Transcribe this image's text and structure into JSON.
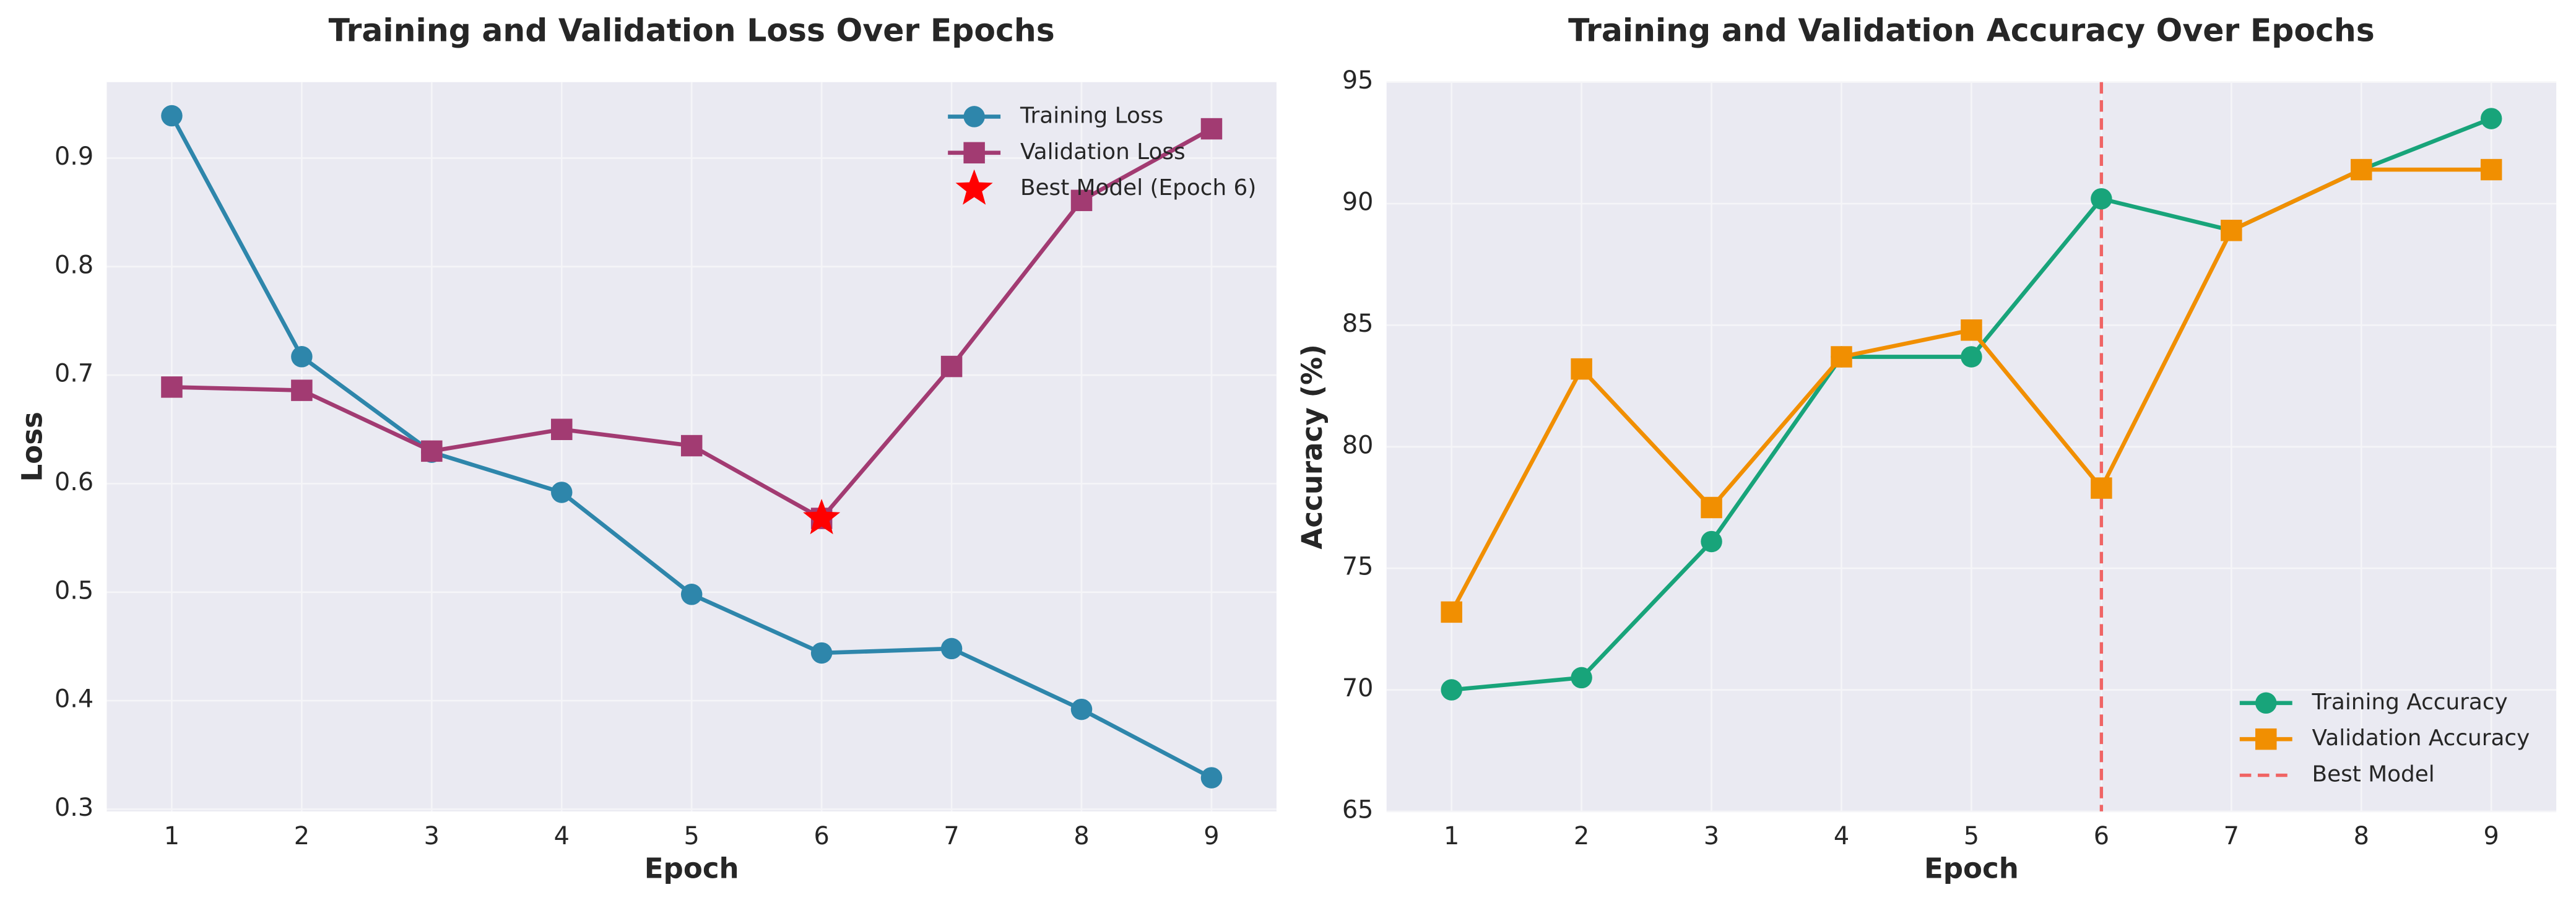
{
  "chart_data": [
    {
      "type": "line",
      "title": "Training and Validation Loss Over Epochs",
      "xlabel": "Epoch",
      "ylabel": "Loss",
      "x": [
        1,
        2,
        3,
        4,
        5,
        6,
        7,
        8,
        9
      ],
      "series": [
        {
          "name": "Training Loss",
          "color": "#2e86ab",
          "marker": "circle",
          "values": [
            0.939,
            0.717,
            0.629,
            0.592,
            0.498,
            0.444,
            0.448,
            0.392,
            0.329
          ]
        },
        {
          "name": "Validation Loss",
          "color": "#a23b72",
          "marker": "square",
          "values": [
            0.689,
            0.686,
            0.63,
            0.65,
            0.635,
            0.568,
            0.708,
            0.861,
            0.927
          ]
        }
      ],
      "markers": [
        {
          "name": "Best Model (Epoch 6)",
          "color": "#ff0000",
          "marker": "star",
          "x": 6,
          "y": 0.568
        }
      ],
      "xlim": [
        0.5,
        9.5
      ],
      "xticks": [
        1,
        2,
        3,
        4,
        5,
        6,
        7,
        8,
        9
      ],
      "ylim": [
        0.298,
        0.97
      ],
      "yticks": [
        0.3,
        0.4,
        0.5,
        0.6,
        0.7,
        0.8,
        0.9
      ],
      "grid": true,
      "legend": "upper right"
    },
    {
      "type": "line",
      "title": "Training and Validation Accuracy Over Epochs",
      "xlabel": "Epoch",
      "ylabel": "Accuracy (%)",
      "x": [
        1,
        2,
        3,
        4,
        5,
        6,
        7,
        8,
        9
      ],
      "series": [
        {
          "name": "Training Accuracy",
          "color": "#18a47a",
          "marker": "circle",
          "values": [
            70.0,
            70.5,
            76.1,
            83.7,
            83.7,
            90.2,
            88.9,
            91.4,
            93.5
          ]
        },
        {
          "name": "Validation Accuracy",
          "color": "#f18f01",
          "marker": "square",
          "values": [
            73.2,
            83.2,
            77.5,
            83.7,
            84.8,
            78.3,
            88.9,
            91.4,
            91.4
          ]
        }
      ],
      "vlines": [
        {
          "name": "Best Model",
          "color": "#f06464",
          "x": 6
        }
      ],
      "xlim": [
        0.5,
        9.5
      ],
      "xticks": [
        1,
        2,
        3,
        4,
        5,
        6,
        7,
        8,
        9
      ],
      "ylim": [
        65,
        95
      ],
      "yticks": [
        65,
        70,
        75,
        80,
        85,
        90,
        95
      ],
      "grid": true,
      "legend": "lower right"
    }
  ]
}
